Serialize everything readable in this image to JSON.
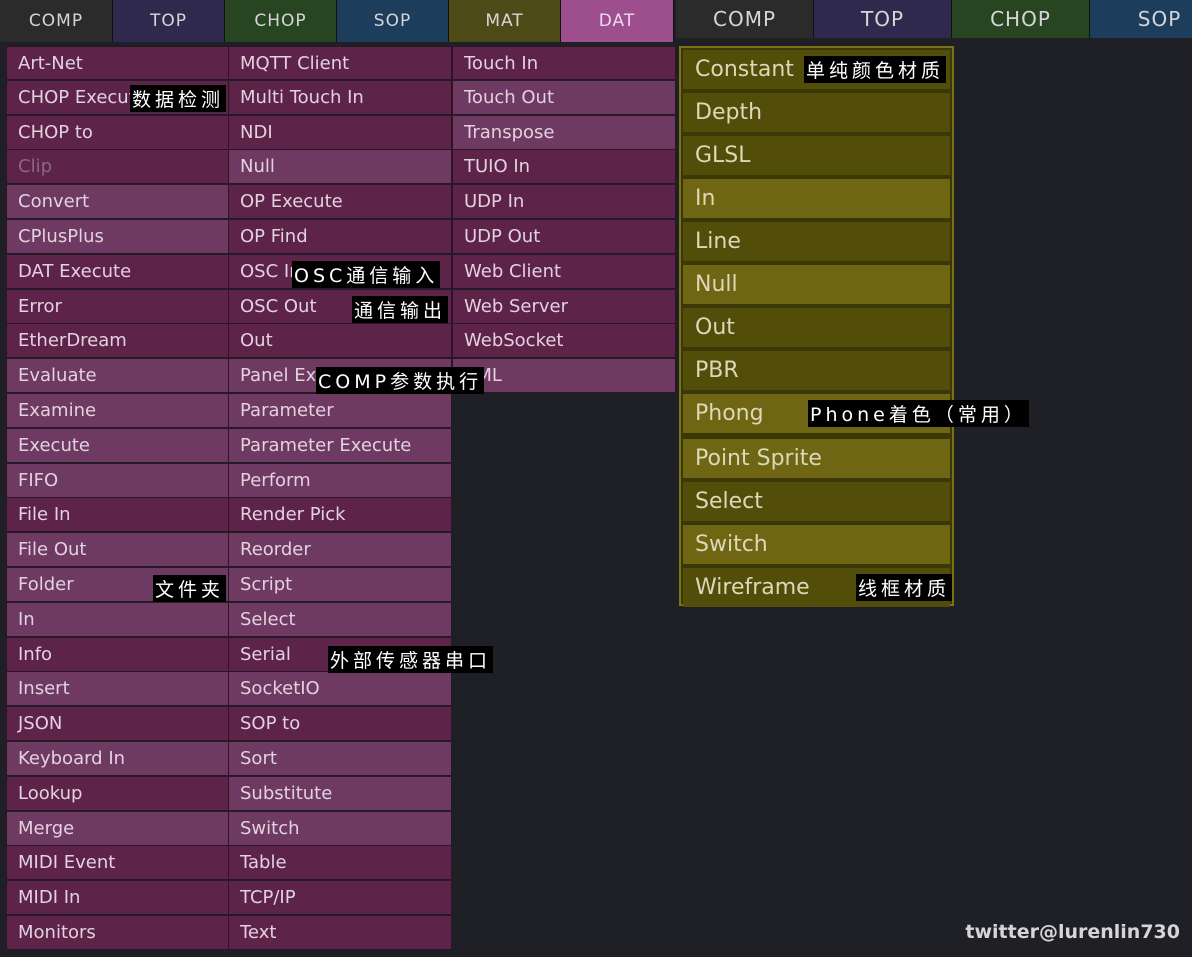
{
  "tabs_left": [
    "COMP",
    "TOP",
    "CHOP",
    "SOP",
    "MAT",
    "DAT"
  ],
  "tabs_right": [
    "COMP",
    "TOP",
    "CHOP",
    "SOP"
  ],
  "dat_columns": [
    [
      "Art-Net",
      "CHOP Execute",
      "CHOP to",
      "Clip",
      "Convert",
      "CPlusPlus",
      "DAT Execute",
      "Error",
      "EtherDream",
      "Evaluate",
      "Examine",
      "Execute",
      "FIFO",
      "File In",
      "File Out",
      "Folder",
      "In",
      "Info",
      "Insert",
      "JSON",
      "Keyboard In",
      "Lookup",
      "Merge",
      "MIDI Event",
      "MIDI In",
      "Monitors"
    ],
    [
      "MQTT Client",
      "Multi Touch In",
      "NDI",
      "Null",
      "OP Execute",
      "OP Find",
      "OSC In",
      "OSC Out",
      "Out",
      "Panel Execute",
      "Parameter",
      "Parameter Execute",
      "Perform",
      "Render Pick",
      "Reorder",
      "Script",
      "Select",
      "Serial",
      "SocketIO",
      "SOP to",
      "Sort",
      "Substitute",
      "Switch",
      "Table",
      "TCP/IP",
      "Text"
    ],
    [
      "Touch In",
      "Touch Out",
      "Transpose",
      "TUIO In",
      "UDP In",
      "UDP Out",
      "Web Client",
      "Web Server",
      "WebSocket",
      "XML"
    ]
  ],
  "mat_items": [
    "Constant",
    "Depth",
    "GLSL",
    "In",
    "Line",
    "Null",
    "Out",
    "PBR",
    "Phong",
    "Point Sprite",
    "Select",
    "Switch",
    "Wireframe"
  ],
  "annotations": {
    "chop_execute": "数据检测",
    "osc_in": "OSC通信输入",
    "osc_out": "通信输出",
    "panel_execute": "COMP参数执行",
    "folder": "文件夹",
    "serial": "外部传感器串口",
    "constant": "单纯颜色材质",
    "phong": "Phone着色（常用）",
    "wireframe": "线框材质"
  },
  "watermark": "twitter@lurenlin730",
  "colors": {
    "background": "#1f2026",
    "dat_item": "#5d2348",
    "dat_item_alt": "#6e3a62",
    "mat_item": "#534d0a",
    "mat_item_alt": "#6e6612"
  }
}
